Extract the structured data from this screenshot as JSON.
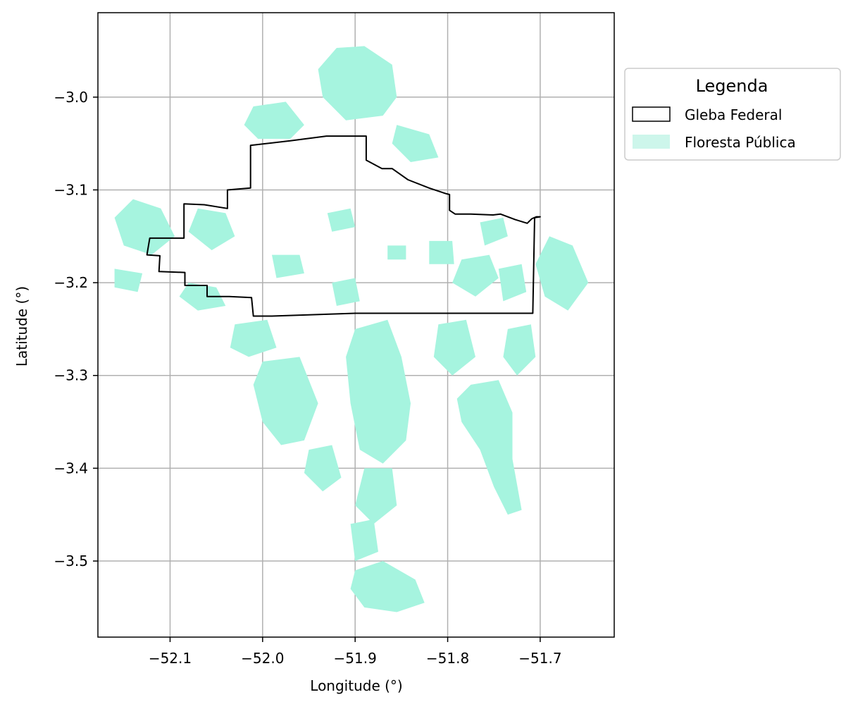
{
  "chart_data": {
    "type": "map",
    "xlabel": "Longitude (°)",
    "ylabel": "Latitude (°)",
    "xlim": [
      -52.178,
      -51.62
    ],
    "ylim": [
      -3.582,
      -2.909
    ],
    "x_ticks": [
      -52.1,
      -52.0,
      -51.9,
      -51.8,
      -51.7
    ],
    "x_tick_labels": [
      "−52.1",
      "−52.0",
      "−51.9",
      "−51.8",
      "−51.7"
    ],
    "y_ticks": [
      -3.0,
      -3.1,
      -3.2,
      -3.3,
      -3.4,
      -3.5
    ],
    "y_tick_labels": [
      "−3.0",
      "−3.1",
      "−3.2",
      "−3.3",
      "−3.4",
      "−3.5"
    ],
    "grid": true,
    "legend": {
      "title": "Legenda",
      "placement": "outside-right-top",
      "entries": [
        {
          "label": "Gleba Federal",
          "style": "outline",
          "color": "#000000"
        },
        {
          "label": "Floresta Pública",
          "style": "fill",
          "color": "#a6f4df"
        }
      ]
    },
    "gleba_boundary": [
      [
        -52.122,
        -3.152
      ],
      [
        -52.085,
        -3.152
      ],
      [
        -52.085,
        -3.115
      ],
      [
        -52.063,
        -3.116
      ],
      [
        -52.038,
        -3.12
      ],
      [
        -52.038,
        -3.1
      ],
      [
        -52.013,
        -3.098
      ],
      [
        -52.013,
        -3.052
      ],
      [
        -51.97,
        -3.047
      ],
      [
        -51.931,
        -3.042
      ],
      [
        -51.888,
        -3.042
      ],
      [
        -51.888,
        -3.068
      ],
      [
        -51.871,
        -3.077
      ],
      [
        -51.86,
        -3.077
      ],
      [
        -51.843,
        -3.089
      ],
      [
        -51.82,
        -3.098
      ],
      [
        -51.802,
        -3.104
      ],
      [
        -51.798,
        -3.105
      ],
      [
        -51.798,
        -3.122
      ],
      [
        -51.792,
        -3.126
      ],
      [
        -51.775,
        -3.126
      ],
      [
        -51.751,
        -3.127
      ],
      [
        -51.743,
        -3.126
      ],
      [
        -51.727,
        -3.132
      ],
      [
        -51.714,
        -3.136
      ],
      [
        -51.709,
        -3.131
      ],
      [
        -51.704,
        -3.129
      ],
      [
        -51.7,
        -3.129
      ],
      [
        -51.706,
        -3.13
      ],
      [
        -51.708,
        -3.233
      ],
      [
        -51.797,
        -3.233
      ],
      [
        -51.9,
        -3.233
      ],
      [
        -51.99,
        -3.236
      ],
      [
        -52.01,
        -3.236
      ],
      [
        -52.012,
        -3.216
      ],
      [
        -52.036,
        -3.215
      ],
      [
        -52.06,
        -3.215
      ],
      [
        -52.06,
        -3.203
      ],
      [
        -52.084,
        -3.203
      ],
      [
        -52.084,
        -3.189
      ],
      [
        -52.112,
        -3.188
      ],
      [
        -52.111,
        -3.171
      ],
      [
        -52.125,
        -3.17
      ]
    ],
    "forest_patches": [
      {
        "name": "north-blob",
        "coords": [
          [
            -51.92,
            -2.947
          ],
          [
            -51.89,
            -2.945
          ],
          [
            -51.86,
            -2.965
          ],
          [
            -51.855,
            -3.0
          ],
          [
            -51.87,
            -3.02
          ],
          [
            -51.91,
            -3.025
          ],
          [
            -51.935,
            -3.0
          ],
          [
            -51.94,
            -2.97
          ]
        ]
      },
      {
        "name": "north-west-blob",
        "coords": [
          [
            -52.01,
            -3.01
          ],
          [
            -51.975,
            -3.005
          ],
          [
            -51.955,
            -3.03
          ],
          [
            -51.97,
            -3.045
          ],
          [
            -52.005,
            -3.045
          ],
          [
            -52.02,
            -3.03
          ]
        ]
      },
      {
        "name": "north-east-blob",
        "coords": [
          [
            -51.855,
            -3.03
          ],
          [
            -51.82,
            -3.04
          ],
          [
            -51.81,
            -3.065
          ],
          [
            -51.84,
            -3.07
          ],
          [
            -51.86,
            -3.05
          ]
        ]
      },
      {
        "name": "far-west-blob",
        "coords": [
          [
            -52.14,
            -3.11
          ],
          [
            -52.11,
            -3.12
          ],
          [
            -52.095,
            -3.15
          ],
          [
            -52.12,
            -3.17
          ],
          [
            -52.15,
            -3.16
          ],
          [
            -52.16,
            -3.13
          ]
        ]
      },
      {
        "name": "west-blob",
        "coords": [
          [
            -52.16,
            -3.185
          ],
          [
            -52.13,
            -3.19
          ],
          [
            -52.135,
            -3.21
          ],
          [
            -52.16,
            -3.205
          ]
        ]
      },
      {
        "name": "west-inner-blob",
        "coords": [
          [
            -52.07,
            -3.12
          ],
          [
            -52.04,
            -3.125
          ],
          [
            -52.03,
            -3.15
          ],
          [
            -52.055,
            -3.165
          ],
          [
            -52.08,
            -3.145
          ]
        ]
      },
      {
        "name": "west-lower-blob",
        "coords": [
          [
            -52.08,
            -3.2
          ],
          [
            -52.05,
            -3.205
          ],
          [
            -52.04,
            -3.225
          ],
          [
            -52.07,
            -3.23
          ],
          [
            -52.09,
            -3.215
          ]
        ]
      },
      {
        "name": "center-blob-1",
        "coords": [
          [
            -51.99,
            -3.17
          ],
          [
            -51.96,
            -3.17
          ],
          [
            -51.955,
            -3.19
          ],
          [
            -51.985,
            -3.195
          ]
        ]
      },
      {
        "name": "center-blob-2",
        "coords": [
          [
            -51.93,
            -3.125
          ],
          [
            -51.905,
            -3.12
          ],
          [
            -51.9,
            -3.14
          ],
          [
            -51.925,
            -3.145
          ]
        ]
      },
      {
        "name": "center-blob-3",
        "coords": [
          [
            -51.865,
            -3.16
          ],
          [
            -51.845,
            -3.16
          ],
          [
            -51.845,
            -3.175
          ],
          [
            -51.865,
            -3.175
          ]
        ]
      },
      {
        "name": "center-blob-4",
        "coords": [
          [
            -51.925,
            -3.2
          ],
          [
            -51.9,
            -3.195
          ],
          [
            -51.895,
            -3.22
          ],
          [
            -51.92,
            -3.225
          ]
        ]
      },
      {
        "name": "center-east-blob",
        "coords": [
          [
            -51.82,
            -3.155
          ],
          [
            -51.795,
            -3.155
          ],
          [
            -51.793,
            -3.18
          ],
          [
            -51.82,
            -3.18
          ]
        ]
      },
      {
        "name": "east-blob-1",
        "coords": [
          [
            -51.785,
            -3.175
          ],
          [
            -51.755,
            -3.17
          ],
          [
            -51.745,
            -3.195
          ],
          [
            -51.77,
            -3.215
          ],
          [
            -51.795,
            -3.2
          ]
        ]
      },
      {
        "name": "east-blob-2",
        "coords": [
          [
            -51.765,
            -3.135
          ],
          [
            -51.74,
            -3.13
          ],
          [
            -51.735,
            -3.15
          ],
          [
            -51.76,
            -3.16
          ]
        ]
      },
      {
        "name": "east-blob-3",
        "coords": [
          [
            -51.745,
            -3.185
          ],
          [
            -51.72,
            -3.18
          ],
          [
            -51.715,
            -3.21
          ],
          [
            -51.74,
            -3.22
          ]
        ]
      },
      {
        "name": "far-east-blob",
        "coords": [
          [
            -51.69,
            -3.15
          ],
          [
            -51.665,
            -3.16
          ],
          [
            -51.648,
            -3.2
          ],
          [
            -51.67,
            -3.23
          ],
          [
            -51.695,
            -3.215
          ],
          [
            -51.705,
            -3.18
          ]
        ]
      },
      {
        "name": "south-west-blob",
        "coords": [
          [
            -52.0,
            -3.285
          ],
          [
            -51.96,
            -3.28
          ],
          [
            -51.94,
            -3.33
          ],
          [
            -51.955,
            -3.37
          ],
          [
            -51.98,
            -3.375
          ],
          [
            -52.0,
            -3.35
          ],
          [
            -52.01,
            -3.31
          ]
        ]
      },
      {
        "name": "south-west-upper-blob",
        "coords": [
          [
            -52.03,
            -3.245
          ],
          [
            -51.995,
            -3.24
          ],
          [
            -51.985,
            -3.27
          ],
          [
            -52.015,
            -3.28
          ],
          [
            -52.035,
            -3.27
          ]
        ]
      },
      {
        "name": "south-center-blob",
        "coords": [
          [
            -51.9,
            -3.25
          ],
          [
            -51.865,
            -3.24
          ],
          [
            -51.85,
            -3.28
          ],
          [
            -51.84,
            -3.33
          ],
          [
            -51.845,
            -3.37
          ],
          [
            -51.87,
            -3.395
          ],
          [
            -51.895,
            -3.38
          ],
          [
            -51.905,
            -3.33
          ],
          [
            -51.91,
            -3.28
          ]
        ]
      },
      {
        "name": "south-center-lower-blob",
        "coords": [
          [
            -51.89,
            -3.4
          ],
          [
            -51.86,
            -3.4
          ],
          [
            -51.855,
            -3.44
          ],
          [
            -51.88,
            -3.46
          ],
          [
            -51.9,
            -3.44
          ]
        ]
      },
      {
        "name": "south-stem-blob",
        "coords": [
          [
            -51.905,
            -3.46
          ],
          [
            -51.88,
            -3.455
          ],
          [
            -51.875,
            -3.49
          ],
          [
            -51.9,
            -3.5
          ]
        ]
      },
      {
        "name": "south-tip-blob",
        "coords": [
          [
            -51.9,
            -3.51
          ],
          [
            -51.87,
            -3.5
          ],
          [
            -51.835,
            -3.52
          ],
          [
            -51.825,
            -3.545
          ],
          [
            -51.855,
            -3.555
          ],
          [
            -51.89,
            -3.55
          ],
          [
            -51.905,
            -3.53
          ]
        ]
      },
      {
        "name": "south-east-upper-blob",
        "coords": [
          [
            -51.81,
            -3.245
          ],
          [
            -51.78,
            -3.24
          ],
          [
            -51.77,
            -3.28
          ],
          [
            -51.795,
            -3.3
          ],
          [
            -51.815,
            -3.28
          ]
        ]
      },
      {
        "name": "south-east-blob",
        "coords": [
          [
            -51.775,
            -3.31
          ],
          [
            -51.745,
            -3.305
          ],
          [
            -51.73,
            -3.34
          ],
          [
            -51.73,
            -3.39
          ],
          [
            -51.72,
            -3.445
          ],
          [
            -51.735,
            -3.45
          ],
          [
            -51.75,
            -3.42
          ],
          [
            -51.765,
            -3.38
          ],
          [
            -51.785,
            -3.35
          ],
          [
            -51.79,
            -3.325
          ]
        ]
      },
      {
        "name": "south-east-right-blob",
        "coords": [
          [
            -51.735,
            -3.25
          ],
          [
            -51.71,
            -3.245
          ],
          [
            -51.705,
            -3.28
          ],
          [
            -51.725,
            -3.3
          ],
          [
            -51.74,
            -3.28
          ]
        ]
      },
      {
        "name": "south-mid-blob",
        "coords": [
          [
            -51.95,
            -3.38
          ],
          [
            -51.925,
            -3.375
          ],
          [
            -51.915,
            -3.41
          ],
          [
            -51.935,
            -3.425
          ],
          [
            -51.955,
            -3.405
          ]
        ]
      }
    ]
  }
}
